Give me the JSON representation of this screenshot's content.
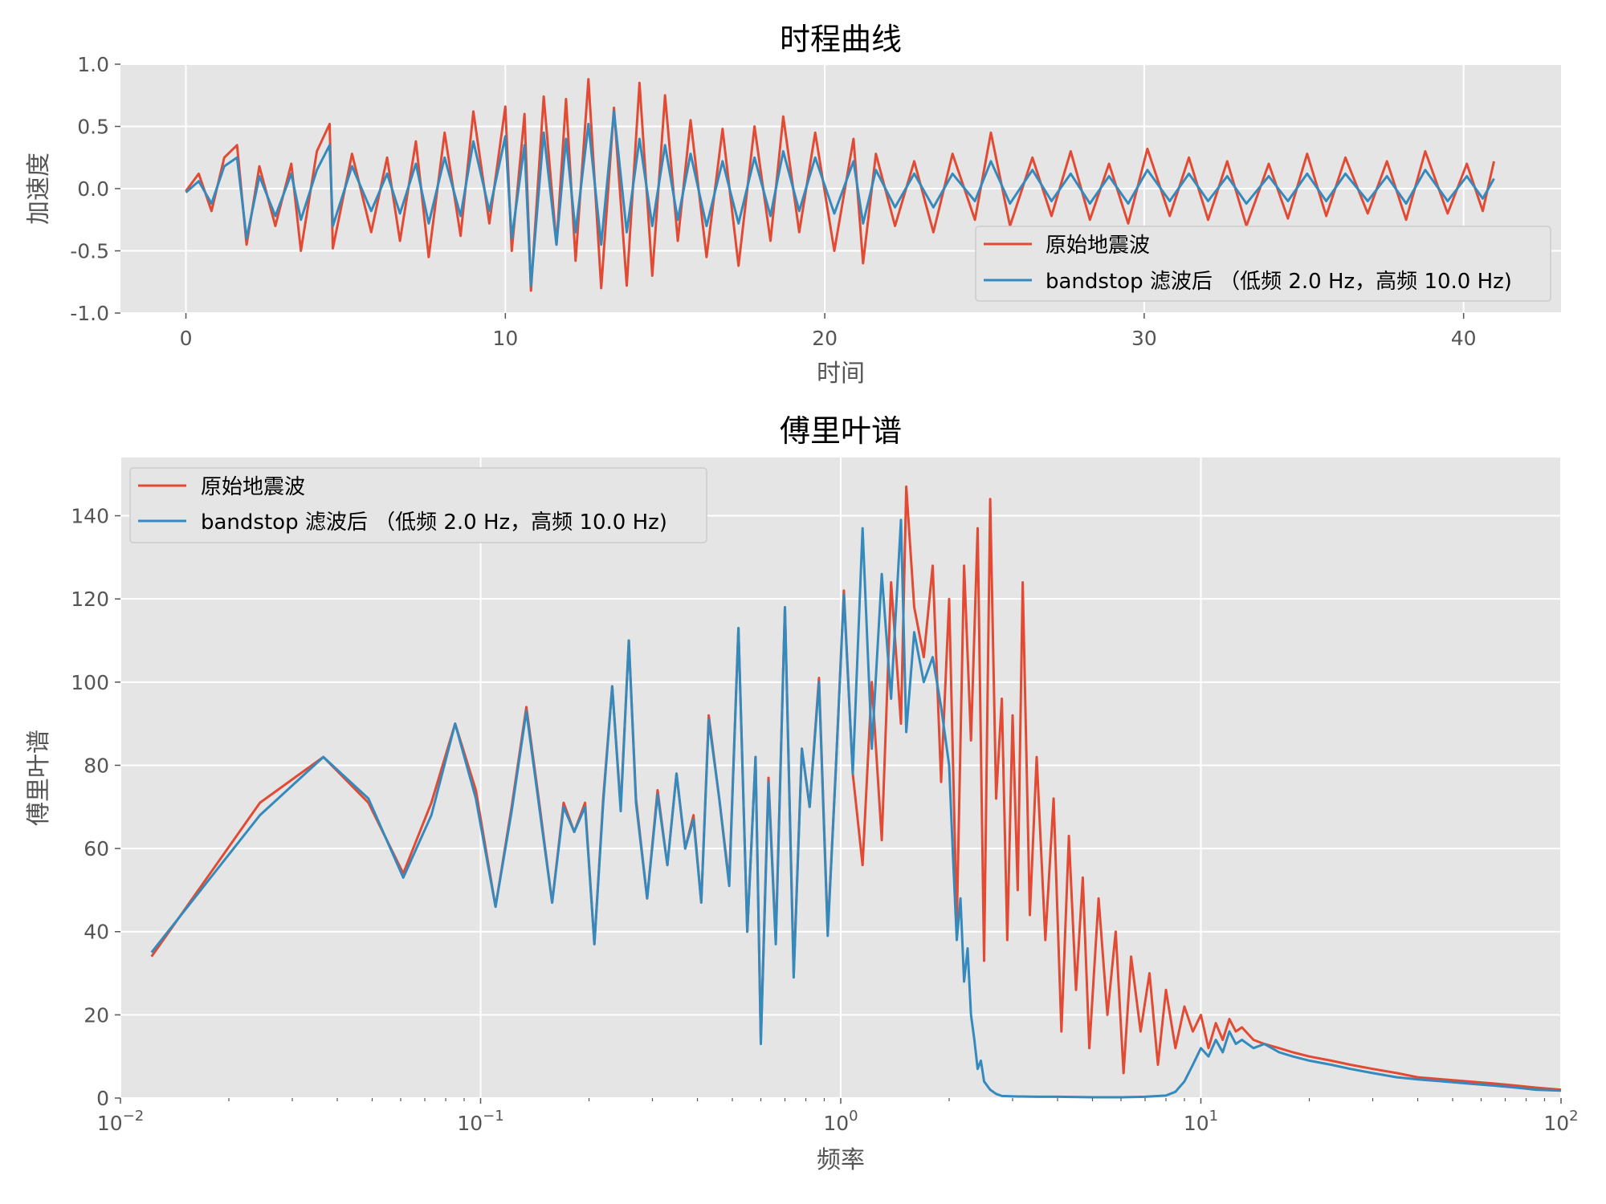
{
  "colors": {
    "original": "#e24a33",
    "filtered": "#348abd",
    "panel_bg": "#e5e5e5",
    "grid": "#ffffff",
    "tick_text": "#555555"
  },
  "chart_data": [
    {
      "type": "line",
      "title": "时程曲线",
      "xlabel": "时间",
      "ylabel": "加速度",
      "xlim": [
        -2.05,
        43.05
      ],
      "ylim": [
        -1.0,
        1.0
      ],
      "xticks": [
        0,
        10,
        20,
        30,
        40
      ],
      "xtick_labels": [
        "0",
        "10",
        "20",
        "30",
        "40"
      ],
      "yticks": [
        -1.0,
        -0.5,
        0.0,
        0.5,
        1.0
      ],
      "ytick_labels": [
        "-1.0",
        "-0.5",
        "0.0",
        "0.5",
        "1.0"
      ],
      "grid": true,
      "legend_position": "lower-right",
      "series": [
        {
          "name": "原始地震波",
          "color": "#e24a33",
          "x": [
            0,
            0.4,
            0.8,
            1.2,
            1.6,
            1.9,
            2.3,
            2.8,
            3.3,
            3.6,
            4.1,
            4.5,
            4.6,
            5.2,
            5.8,
            6.3,
            6.7,
            7.2,
            7.6,
            8.1,
            8.6,
            9.0,
            9.5,
            10.0,
            10.2,
            10.6,
            10.8,
            11.2,
            11.6,
            11.9,
            12.2,
            12.6,
            13.0,
            13.4,
            13.8,
            14.2,
            14.6,
            15.0,
            15.4,
            15.8,
            16.3,
            16.8,
            17.3,
            17.8,
            18.3,
            18.7,
            19.2,
            19.7,
            20.3,
            20.9,
            21.2,
            21.6,
            22.2,
            22.8,
            23.4,
            24.0,
            24.7,
            25.2,
            25.8,
            26.5,
            27.1,
            27.7,
            28.3,
            28.9,
            29.5,
            30.1,
            30.8,
            31.4,
            32.0,
            32.6,
            33.2,
            33.9,
            34.5,
            35.1,
            35.7,
            36.3,
            37.0,
            37.6,
            38.2,
            38.8,
            39.5,
            40.1,
            40.6,
            40.95
          ],
          "y": [
            -0.02,
            0.12,
            -0.18,
            0.25,
            0.35,
            -0.45,
            0.18,
            -0.3,
            0.2,
            -0.5,
            0.3,
            0.52,
            -0.48,
            0.28,
            -0.35,
            0.25,
            -0.42,
            0.38,
            -0.55,
            0.45,
            -0.38,
            0.62,
            -0.28,
            0.66,
            -0.5,
            0.6,
            -0.82,
            0.74,
            -0.45,
            0.72,
            -0.58,
            0.88,
            -0.8,
            0.65,
            -0.78,
            0.85,
            -0.7,
            0.75,
            -0.42,
            0.55,
            -0.55,
            0.48,
            -0.62,
            0.5,
            -0.42,
            0.58,
            -0.35,
            0.45,
            -0.5,
            0.4,
            -0.6,
            0.28,
            -0.3,
            0.22,
            -0.35,
            0.28,
            -0.25,
            0.45,
            -0.3,
            0.25,
            -0.22,
            0.3,
            -0.25,
            0.2,
            -0.28,
            0.32,
            -0.22,
            0.25,
            -0.25,
            0.22,
            -0.3,
            0.2,
            -0.24,
            0.28,
            -0.22,
            0.25,
            -0.2,
            0.22,
            -0.25,
            0.3,
            -0.2,
            0.2,
            -0.18,
            0.22
          ]
        },
        {
          "name": "bandstop 滤波后 （低频 2.0 Hz，高频 10.0 Hz)",
          "color": "#348abd",
          "x": [
            0,
            0.4,
            0.8,
            1.2,
            1.6,
            1.9,
            2.3,
            2.8,
            3.3,
            3.6,
            4.1,
            4.5,
            4.6,
            5.2,
            5.8,
            6.3,
            6.7,
            7.2,
            7.6,
            8.1,
            8.6,
            9.0,
            9.5,
            10.0,
            10.2,
            10.6,
            10.8,
            11.2,
            11.6,
            11.9,
            12.2,
            12.6,
            13.0,
            13.4,
            13.8,
            14.2,
            14.6,
            15.0,
            15.4,
            15.8,
            16.3,
            16.8,
            17.3,
            17.8,
            18.3,
            18.7,
            19.2,
            19.7,
            20.3,
            20.9,
            21.2,
            21.6,
            22.2,
            22.8,
            23.4,
            24.0,
            24.7,
            25.2,
            25.8,
            26.5,
            27.1,
            27.7,
            28.3,
            28.9,
            29.5,
            30.1,
            30.8,
            31.4,
            32.0,
            32.6,
            33.2,
            33.9,
            34.5,
            35.1,
            35.7,
            36.3,
            37.0,
            37.6,
            38.2,
            38.8,
            39.5,
            40.1,
            40.6,
            40.95
          ],
          "y": [
            -0.03,
            0.06,
            -0.12,
            0.18,
            0.25,
            -0.4,
            0.1,
            -0.22,
            0.12,
            -0.25,
            0.15,
            0.35,
            -0.3,
            0.18,
            -0.18,
            0.12,
            -0.2,
            0.2,
            -0.28,
            0.25,
            -0.22,
            0.38,
            -0.18,
            0.42,
            -0.4,
            0.35,
            -0.78,
            0.45,
            -0.45,
            0.4,
            -0.35,
            0.52,
            -0.45,
            0.62,
            -0.35,
            0.4,
            -0.3,
            0.35,
            -0.25,
            0.28,
            -0.3,
            0.22,
            -0.28,
            0.25,
            -0.22,
            0.3,
            -0.18,
            0.25,
            -0.2,
            0.22,
            -0.28,
            0.15,
            -0.15,
            0.12,
            -0.15,
            0.12,
            -0.1,
            0.22,
            -0.12,
            0.15,
            -0.1,
            0.12,
            -0.12,
            0.1,
            -0.12,
            0.15,
            -0.1,
            0.12,
            -0.1,
            0.1,
            -0.12,
            0.1,
            -0.1,
            0.12,
            -0.1,
            0.12,
            -0.1,
            0.1,
            -0.12,
            0.15,
            -0.1,
            0.1,
            -0.08,
            0.08
          ]
        }
      ]
    },
    {
      "type": "line",
      "title": "傅里叶谱",
      "xlabel": "频率",
      "ylabel": "傅里叶谱",
      "xscale": "log",
      "xlim": [
        0.01,
        100
      ],
      "ylim": [
        0,
        154
      ],
      "xticks": [
        0.01,
        0.1,
        1,
        10,
        100
      ],
      "xtick_labels": [
        [
          "10",
          "−2"
        ],
        [
          "10",
          "−1"
        ],
        [
          "10",
          "0"
        ],
        [
          "10",
          "1"
        ],
        [
          "10",
          "2"
        ]
      ],
      "yticks": [
        0,
        20,
        40,
        60,
        80,
        100,
        120,
        140
      ],
      "ytick_labels": [
        "0",
        "20",
        "40",
        "60",
        "80",
        "100",
        "120",
        "140"
      ],
      "grid": true,
      "legend_position": "upper-left",
      "series": [
        {
          "name": "原始地震波",
          "color": "#e24a33",
          "x": [
            0.0122,
            0.0244,
            0.0366,
            0.0488,
            0.061,
            0.073,
            0.085,
            0.097,
            0.11,
            0.122,
            0.134,
            0.146,
            0.158,
            0.17,
            0.182,
            0.195,
            0.207,
            0.219,
            0.232,
            0.245,
            0.258,
            0.27,
            0.29,
            0.31,
            0.33,
            0.35,
            0.37,
            0.39,
            0.41,
            0.43,
            0.46,
            0.49,
            0.52,
            0.55,
            0.58,
            0.6,
            0.63,
            0.66,
            0.7,
            0.74,
            0.78,
            0.82,
            0.87,
            0.92,
            0.97,
            1.02,
            1.08,
            1.15,
            1.22,
            1.3,
            1.38,
            1.47,
            1.52,
            1.6,
            1.7,
            1.8,
            1.9,
            2.0,
            2.1,
            2.2,
            2.3,
            2.4,
            2.5,
            2.6,
            2.7,
            2.8,
            2.9,
            3.0,
            3.1,
            3.2,
            3.35,
            3.5,
            3.7,
            3.9,
            4.1,
            4.3,
            4.5,
            4.7,
            4.9,
            5.2,
            5.5,
            5.8,
            6.1,
            6.4,
            6.8,
            7.2,
            7.6,
            8.0,
            8.5,
            9.0,
            9.5,
            10.0,
            10.5,
            11.0,
            11.5,
            12.0,
            12.5,
            13.0,
            14,
            15,
            16.5,
            18,
            20,
            23,
            26,
            30,
            35,
            40,
            47,
            55,
            65,
            75,
            85,
            100
          ],
          "y": [
            34,
            71,
            82,
            71,
            54,
            71,
            90,
            74,
            46,
            70,
            94,
            70,
            47,
            71,
            64,
            71,
            37,
            72,
            99,
            70,
            110,
            72,
            48,
            74,
            56,
            78,
            60,
            68,
            47,
            92,
            72,
            52,
            113,
            40,
            82,
            14,
            77,
            38,
            118,
            30,
            84,
            70,
            101,
            40,
            80,
            122,
            78,
            56,
            100,
            62,
            124,
            90,
            147,
            118,
            106,
            128,
            76,
            120,
            42,
            128,
            86,
            137,
            33,
            144,
            72,
            96,
            38,
            92,
            50,
            124,
            44,
            82,
            38,
            72,
            16,
            63,
            26,
            53,
            12,
            48,
            20,
            40,
            6,
            34,
            16,
            30,
            8,
            26,
            12,
            22,
            16,
            20,
            12,
            18,
            14,
            19,
            16,
            17,
            14,
            13,
            12,
            11,
            10,
            9,
            8,
            7,
            6,
            5,
            4.5,
            4,
            3.5,
            3,
            2.5,
            2
          ]
        },
        {
          "name": "bandstop 滤波后 （低频 2.0 Hz，高频 10.0 Hz)",
          "color": "#348abd",
          "x": [
            0.0122,
            0.0244,
            0.0366,
            0.0488,
            0.061,
            0.073,
            0.085,
            0.097,
            0.11,
            0.122,
            0.134,
            0.146,
            0.158,
            0.17,
            0.182,
            0.195,
            0.207,
            0.219,
            0.232,
            0.245,
            0.258,
            0.27,
            0.29,
            0.31,
            0.33,
            0.35,
            0.37,
            0.39,
            0.41,
            0.43,
            0.46,
            0.49,
            0.52,
            0.55,
            0.58,
            0.6,
            0.63,
            0.66,
            0.7,
            0.74,
            0.78,
            0.82,
            0.87,
            0.92,
            0.97,
            1.02,
            1.08,
            1.15,
            1.22,
            1.3,
            1.38,
            1.47,
            1.52,
            1.6,
            1.7,
            1.8,
            1.9,
            2.0,
            2.05,
            2.1,
            2.15,
            2.2,
            2.25,
            2.3,
            2.35,
            2.4,
            2.45,
            2.5,
            2.6,
            2.7,
            2.8,
            3.0,
            3.5,
            4.0,
            5.0,
            6.0,
            7.0,
            8.0,
            8.5,
            9.0,
            9.5,
            10.0,
            10.5,
            11.0,
            11.5,
            12.0,
            12.5,
            13.0,
            14,
            15,
            16.5,
            18,
            20,
            23,
            26,
            30,
            35,
            40,
            47,
            55,
            65,
            75,
            85,
            100
          ],
          "y": [
            35,
            68,
            82,
            72,
            53,
            68,
            90,
            72,
            46,
            69,
            93,
            69,
            47,
            70,
            64,
            70,
            37,
            71,
            99,
            69,
            110,
            71,
            48,
            73,
            56,
            78,
            60,
            67,
            47,
            91,
            72,
            51,
            113,
            40,
            82,
            13,
            76,
            37,
            118,
            29,
            84,
            70,
            100,
            39,
            80,
            121,
            78,
            137,
            84,
            126,
            96,
            139,
            88,
            112,
            100,
            106,
            94,
            80,
            58,
            38,
            48,
            28,
            36,
            20,
            14,
            7,
            9,
            4,
            2,
            1,
            0.5,
            0.4,
            0.3,
            0.3,
            0.2,
            0.2,
            0.3,
            0.6,
            1.5,
            4,
            8,
            12,
            10,
            14,
            11,
            16,
            13,
            14,
            12,
            13,
            11,
            10,
            9,
            8,
            7,
            6,
            5,
            4.5,
            4,
            3.5,
            3,
            2.5,
            2,
            1.8
          ]
        }
      ]
    }
  ]
}
